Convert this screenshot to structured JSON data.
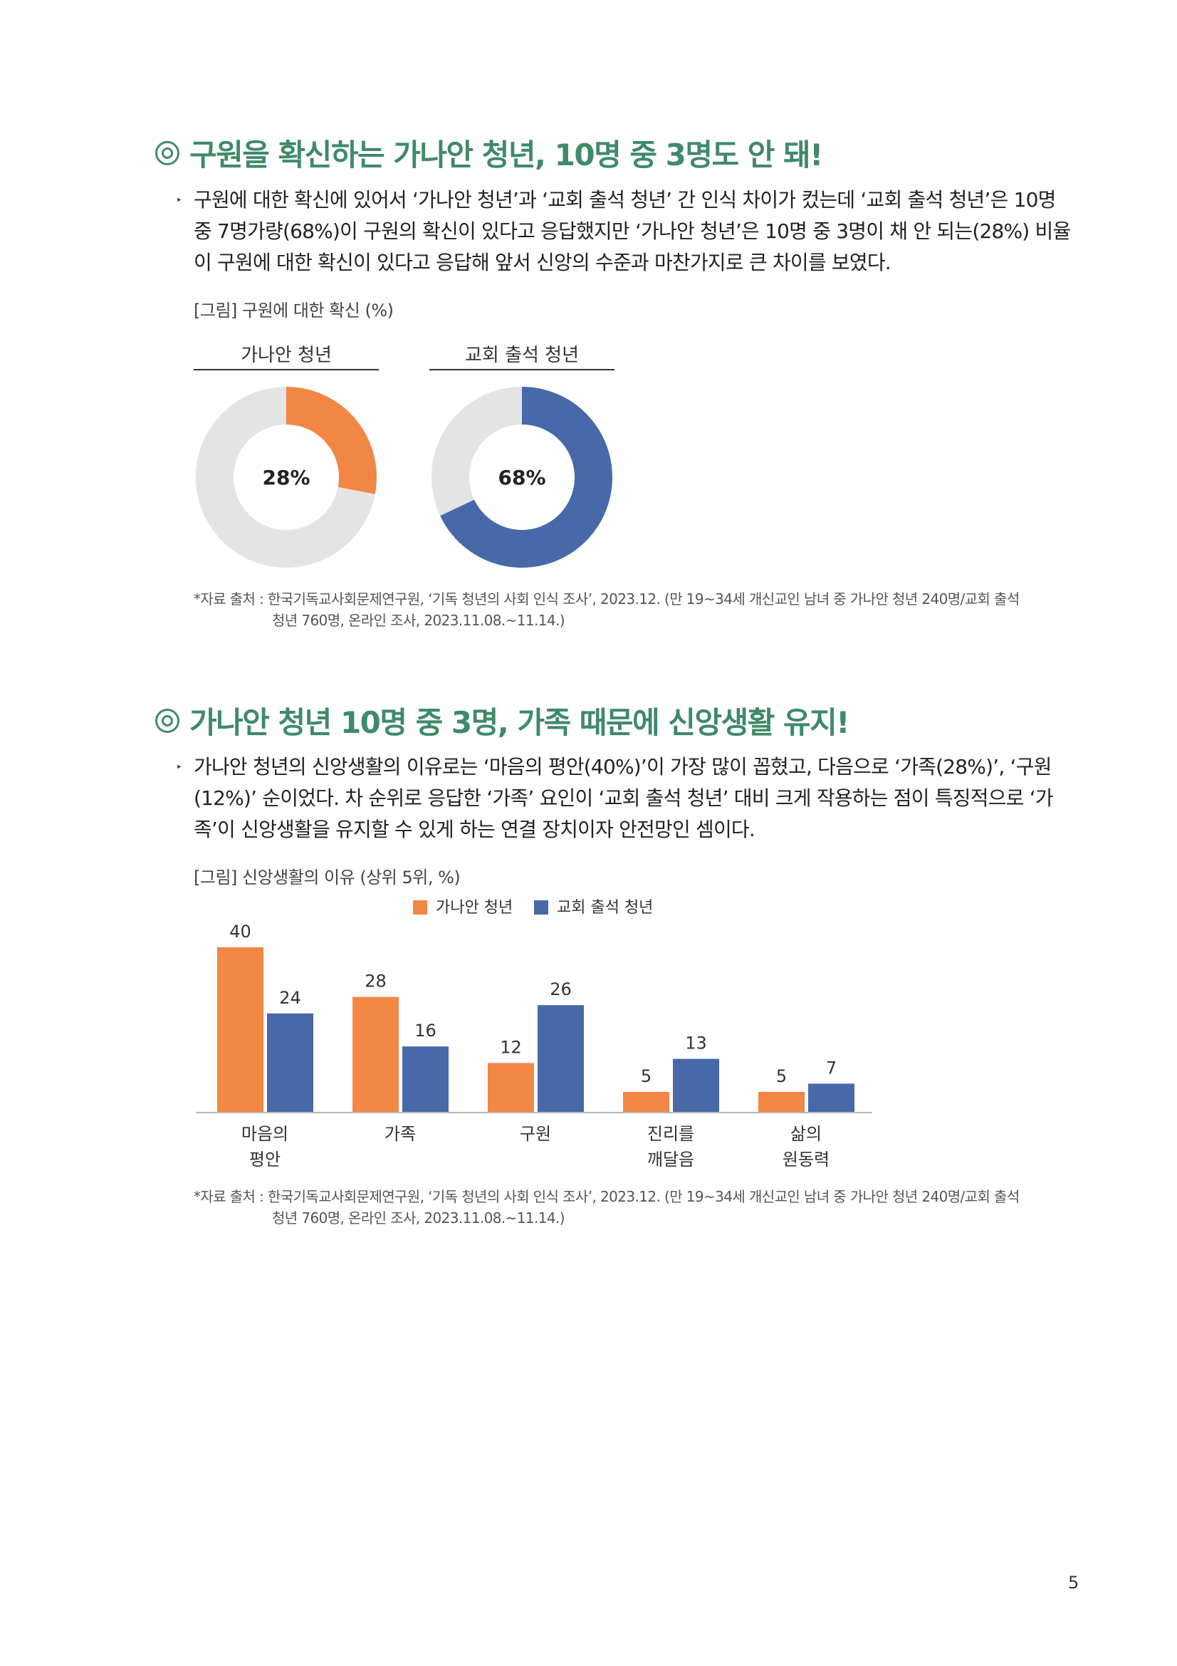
{
  "section1": {
    "title": "구원을 확신하는 가나안 청년, 10명 중 3명도 안 돼!",
    "bullet": "‣",
    "paragraph": "구원에 대한 확신에 있어서 ‘가나안 청년’과 ‘교회 출석 청년’ 간 인식 차이가 컸는데 ‘교회 출석 청년’은 10명 중 7명가량(68%)이 구원의 확신이 있다고 응답했지만 ‘가나안 청년’은 10명 중 3명이 채 안 되는(28%) 비율이 구원에 대한 확신이 있다고 응답해 앞서 신앙의 수준과 마찬가지로 큰 차이를 보였다.",
    "figure_caption": "[그림] 구원에 대한 확신 (%)",
    "source_line1": "*자료 출처 : 한국기독교사회문제연구원, ‘기독 청년의 사회 인식 조사’, 2023.12. (만 19~34세 개신교인 남녀 중 가나안 청년 240명/교회 출석",
    "source_line2": "청년 760명, 온라인 조사, 2023.11.08.~11.14.)"
  },
  "section2": {
    "title": "가나안 청년 10명 중 3명, 가족 때문에 신앙생활 유지!",
    "bullet": "‣",
    "paragraph": "가나안 청년의 신앙생활의 이유로는 ‘마음의 평안(40%)’이 가장 많이 꼽혔고, 다음으로 ‘가족(28%)’, ‘구원(12%)’ 순이었다. 차 순위로 응답한 ‘가족’ 요인이 ‘교회 출석 청년’ 대비 크게 작용하는 점이 특징적으로 ‘가족’이 신앙생활을 유지할 수 있게 하는 연결 장치이자 안전망인 셈이다.",
    "figure_caption": "[그림] 신앙생활의 이유 (상위 5위, %)",
    "source_line1": "*자료 출처 : 한국기독교사회문제연구원, ‘기독 청년의 사회 인식 조사’, 2023.12. (만 19~34세 개신교인 남녀 중 가나안 청년 240명/교회 출석",
    "source_line2": "청년 760명, 온라인 조사, 2023.11.08.~11.14.)"
  },
  "page_number": "5",
  "colors": {
    "green": "#3f8a68",
    "orange": "#f28644",
    "blue": "#4769a8",
    "gray_track": "#e4e4e4"
  },
  "chart_data": [
    {
      "type": "pie",
      "subtype": "donut",
      "title": "가나안 청년",
      "value_label": "28%",
      "values": [
        28,
        72
      ],
      "colors": [
        "#f28644",
        "#e4e4e4"
      ]
    },
    {
      "type": "pie",
      "subtype": "donut",
      "title": "교회 출석 청년",
      "value_label": "68%",
      "values": [
        68,
        32
      ],
      "colors": [
        "#4769a8",
        "#e4e4e4"
      ]
    },
    {
      "type": "bar",
      "categories": [
        [
          "마음의",
          "평안"
        ],
        [
          "가족"
        ],
        [
          "구원"
        ],
        [
          "진리를",
          "깨달음"
        ],
        [
          "삶의",
          "원동력"
        ]
      ],
      "series": [
        {
          "name": "가나안 청년",
          "values": [
            40,
            28,
            12,
            5,
            5
          ],
          "color": "#f28644"
        },
        {
          "name": "교회 출석 청년",
          "values": [
            24,
            16,
            26,
            13,
            7
          ],
          "color": "#4769a8"
        }
      ],
      "ylim": [
        0,
        40
      ],
      "legend": "top-center",
      "grid": false
    }
  ]
}
